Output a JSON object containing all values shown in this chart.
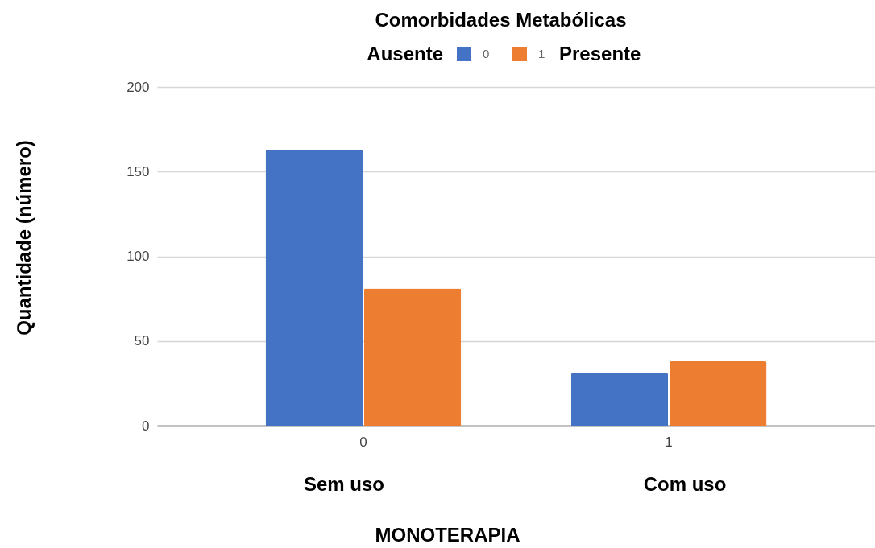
{
  "chart_data": {
    "type": "bar",
    "title": "Comorbidades Metabólicas",
    "xlabel": "MONOTERAPIA",
    "ylabel": "Quantidade (número)",
    "categories": [
      "0",
      "1"
    ],
    "series": [
      {
        "name": "0",
        "color": "#4472c4",
        "values": [
          163,
          31
        ]
      },
      {
        "name": "1",
        "color": "#ed7d31",
        "values": [
          81,
          38
        ]
      }
    ],
    "ylim": [
      0,
      200
    ],
    "yticks": [
      0,
      50,
      100,
      150,
      200
    ],
    "grid": "y",
    "legend": "top",
    "annotations": [
      "Ausente",
      "Presente",
      "Sem uso",
      "Com uso"
    ]
  }
}
